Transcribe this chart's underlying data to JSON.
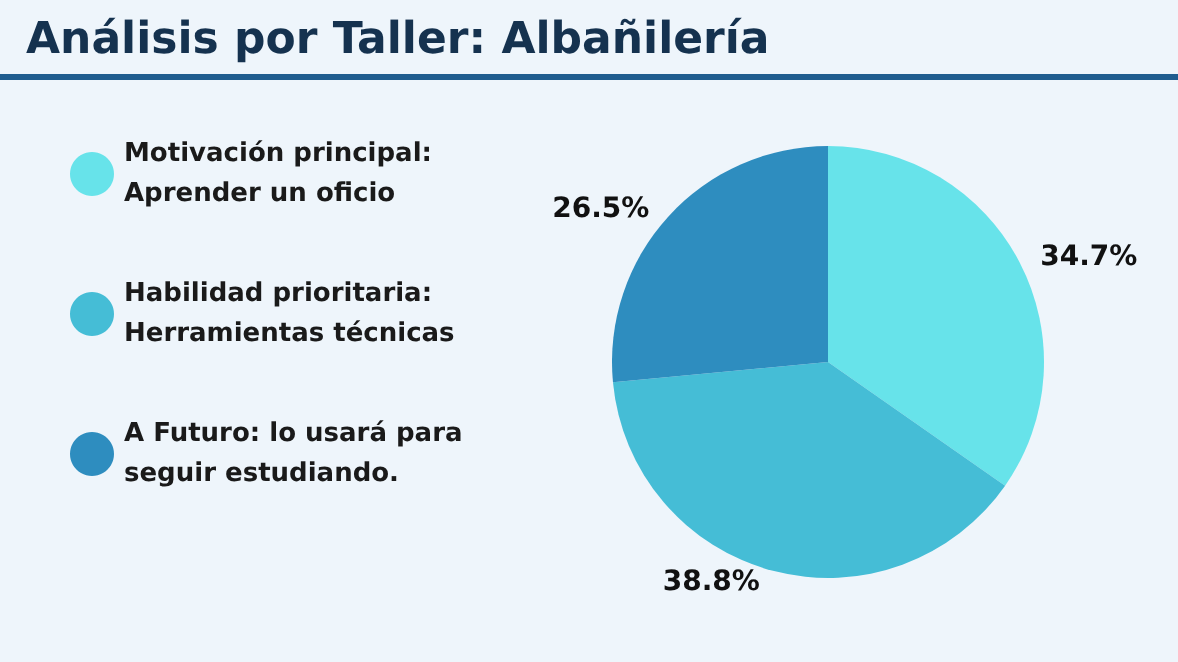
{
  "chart_data": {
    "type": "pie",
    "title": "Análisis por Taller: Albañilería",
    "categories": [
      "Motivación principal: Aprender un oficio",
      "Habilidad prioritaria: Herramientas técnicas",
      "A Futuro: lo usará para seguir estudiando."
    ],
    "values": [
      34.7,
      38.8,
      26.5
    ],
    "colors": [
      "#67e3ea",
      "#45bdd6",
      "#2e8dbf"
    ],
    "value_labels": [
      "34.7%",
      "38.8%",
      "26.5%"
    ],
    "legend": "left"
  }
}
